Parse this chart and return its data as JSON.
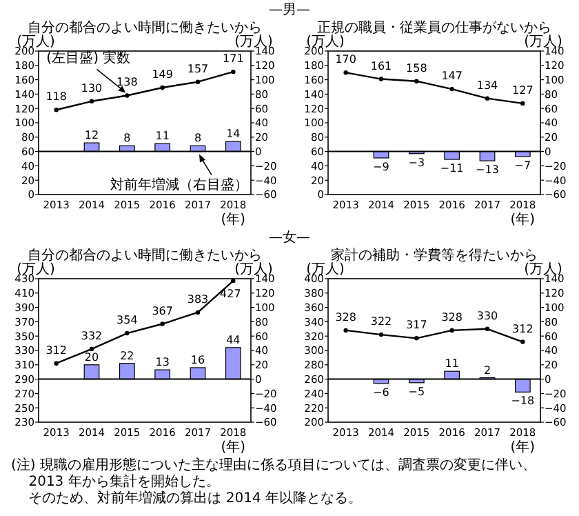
{
  "chart_data": [
    {
      "type": "line",
      "subtitle": "—男—",
      "title": "自分の都合のよい時間に働きたいから",
      "ylabel": "(万人)",
      "y2label": "(万人)",
      "xlabel": "(年)",
      "categories": [
        "2013",
        "2014",
        "2015",
        "2016",
        "2017",
        "2018"
      ],
      "series": [
        {
          "color": "#000000",
          "values": [
            118,
            130,
            138,
            149,
            157,
            171
          ]
        },
        {
          "type": "bar",
          "axis": "y2",
          "color": "#9999ff",
          "values": [
            null,
            12,
            8,
            11,
            8,
            14
          ]
        }
      ],
      "ylim": [
        0,
        200
      ],
      "yticks": [
        0,
        20,
        40,
        60,
        80,
        100,
        120,
        140,
        160,
        180,
        200
      ],
      "y2lim": [
        -60,
        140
      ],
      "y2ticks": [
        -60,
        -40,
        -20,
        0,
        20,
        40,
        60,
        80,
        100,
        120,
        140
      ],
      "data_labels": true,
      "marker": "circle",
      "grid": false,
      "ref_lines": [
        {
          "axis": "y2",
          "value": 0
        }
      ],
      "annotations": [
        {
          "text": "(左目盛) 実数",
          "x": "2015",
          "y": 138
        },
        {
          "text": "対前年増減（右目盛）",
          "x": "2017",
          "y": 60
        }
      ]
    },
    {
      "type": "line",
      "title": "正規の職員・従業員の仕事がないから",
      "ylabel": "(万人)",
      "y2label": "(万人)",
      "xlabel": "(年)",
      "categories": [
        "2013",
        "2014",
        "2015",
        "2016",
        "2017",
        "2018"
      ],
      "series": [
        {
          "color": "#000000",
          "values": [
            170,
            161,
            158,
            147,
            134,
            127
          ]
        },
        {
          "type": "bar",
          "axis": "y2",
          "color": "#9999ff",
          "values": [
            null,
            -9,
            -3,
            -11,
            -13,
            -7
          ]
        }
      ],
      "ylim": [
        0,
        200
      ],
      "yticks": [
        0,
        20,
        40,
        60,
        80,
        100,
        120,
        140,
        160,
        180,
        200
      ],
      "y2lim": [
        -60,
        140
      ],
      "y2ticks": [
        -60,
        -40,
        -20,
        0,
        20,
        40,
        60,
        80,
        100,
        120,
        140
      ],
      "data_labels": true,
      "marker": "circle",
      "grid": false,
      "ref_lines": [
        {
          "axis": "y2",
          "value": 0
        }
      ]
    },
    {
      "type": "line",
      "subtitle": "—女—",
      "title": "自分の都合のよい時間に働きたいから",
      "ylabel": "(万人)",
      "y2label": "(万人)",
      "xlabel": "(年)",
      "categories": [
        "2013",
        "2014",
        "2015",
        "2016",
        "2017",
        "2018"
      ],
      "series": [
        {
          "color": "#000000",
          "values": [
            312,
            332,
            354,
            367,
            383,
            427
          ]
        },
        {
          "type": "bar",
          "axis": "y2",
          "color": "#9999ff",
          "values": [
            null,
            20,
            22,
            13,
            16,
            44
          ]
        }
      ],
      "ylim": [
        230,
        430
      ],
      "yticks": [
        230,
        250,
        270,
        290,
        310,
        330,
        350,
        370,
        390,
        410,
        430
      ],
      "y2lim": [
        -60,
        140
      ],
      "y2ticks": [
        -60,
        -40,
        -20,
        0,
        20,
        40,
        60,
        80,
        100,
        120,
        140
      ],
      "data_labels": true,
      "marker": "circle",
      "grid": false,
      "ref_lines": [
        {
          "axis": "y2",
          "value": 0
        }
      ]
    },
    {
      "type": "line",
      "title": "家計の補助・学費等を得たいから",
      "ylabel": "(万人)",
      "y2label": "(万人)",
      "xlabel": "(年)",
      "categories": [
        "2013",
        "2014",
        "2015",
        "2016",
        "2017",
        "2018"
      ],
      "series": [
        {
          "color": "#000000",
          "values": [
            328,
            322,
            317,
            328,
            330,
            312
          ]
        },
        {
          "type": "bar",
          "axis": "y2",
          "color": "#9999ff",
          "values": [
            null,
            -6,
            -5,
            11,
            2,
            -18
          ]
        }
      ],
      "ylim": [
        200,
        400
      ],
      "yticks": [
        200,
        220,
        240,
        260,
        280,
        300,
        320,
        340,
        360,
        380,
        400
      ],
      "y2lim": [
        -60,
        140
      ],
      "y2ticks": [
        -60,
        -40,
        -20,
        0,
        20,
        40,
        60,
        80,
        100,
        120,
        140
      ],
      "data_labels": true,
      "marker": "circle",
      "grid": false,
      "ref_lines": [
        {
          "axis": "y2",
          "value": 0
        }
      ],
      "annotations": [
        "(注) 現職の雇用形態についた主な理由に係る項目については、調査票の変更に伴い、2013 年から集計を開始した。",
        "そのため、対前年増減の算出は 2014 年以降となる。"
      ]
    }
  ]
}
